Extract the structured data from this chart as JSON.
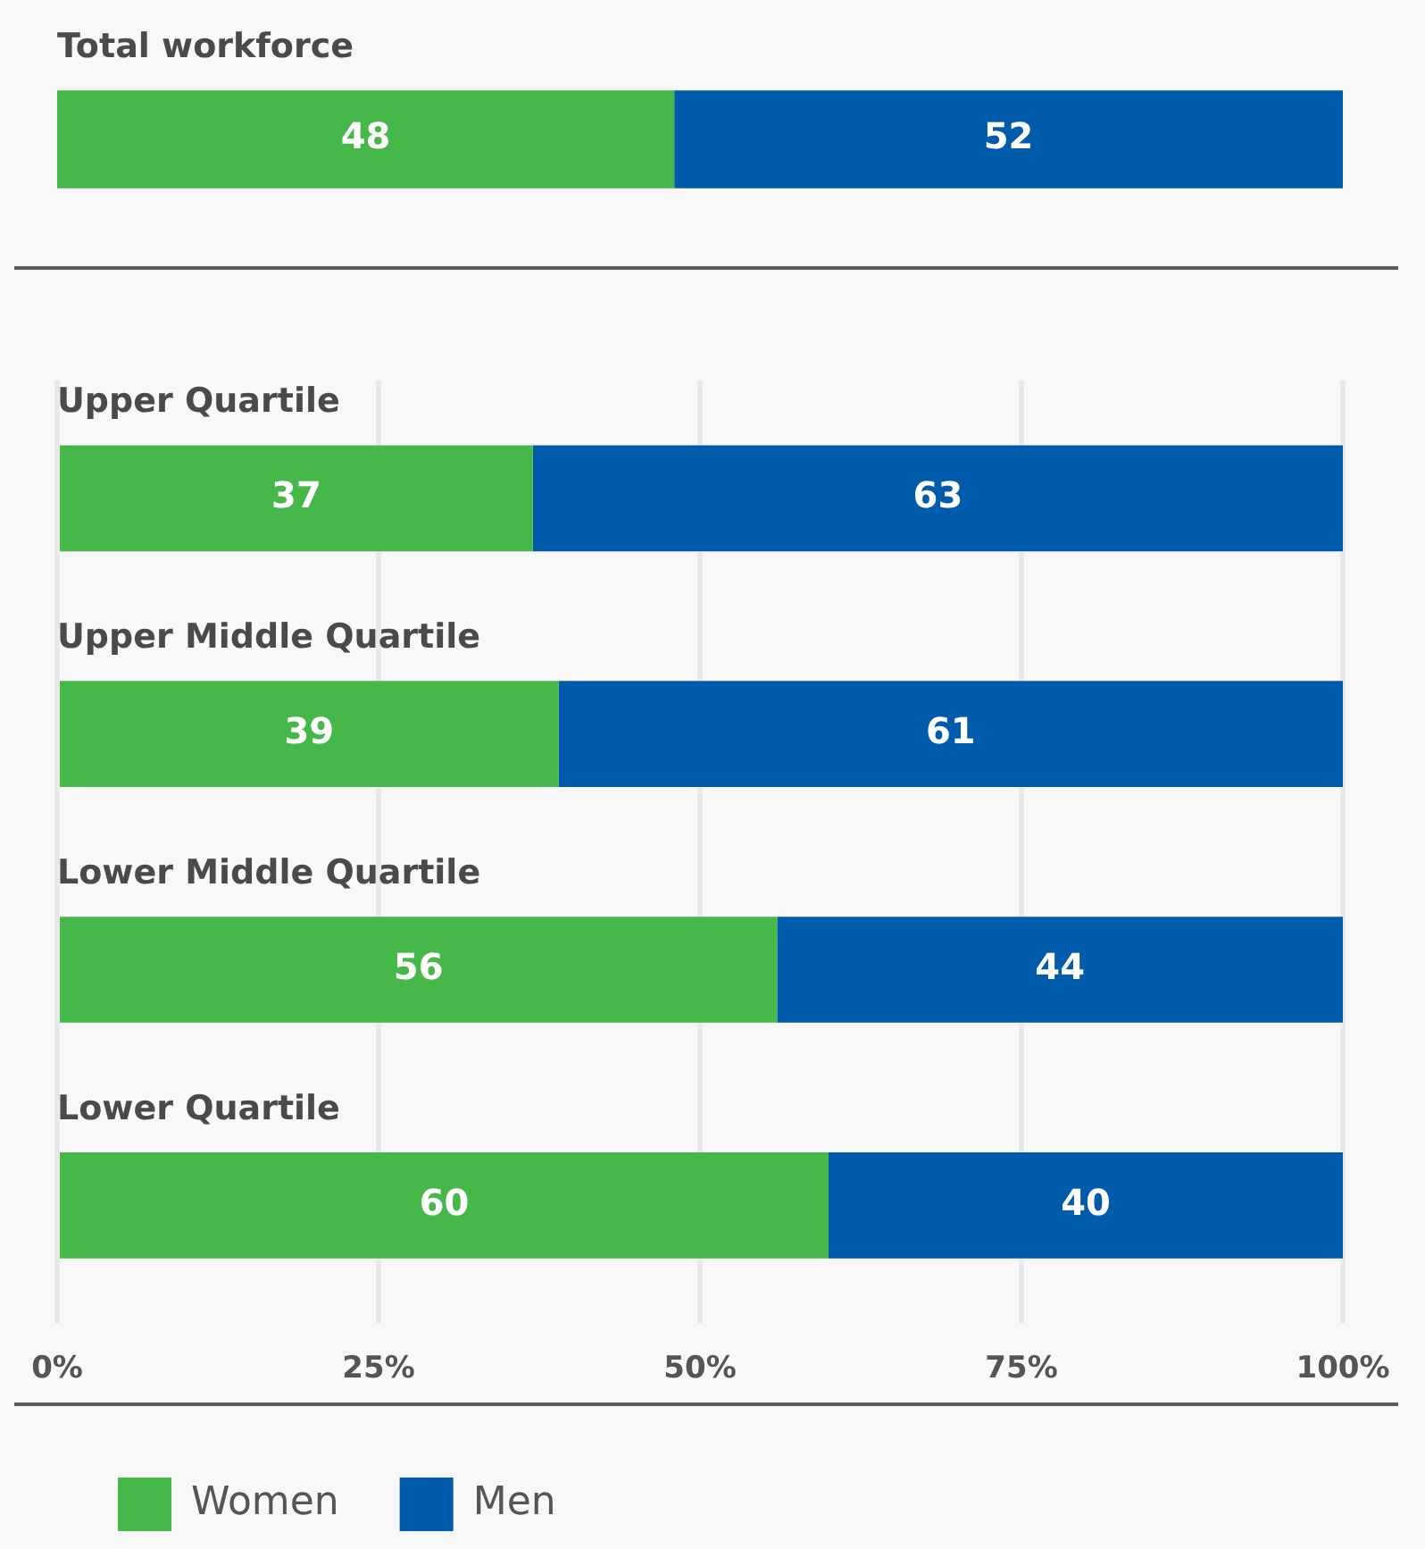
{
  "chart_data": [
    {
      "type": "bar",
      "orientation": "horizontal",
      "stacked": true,
      "categories": [
        "Total workforce"
      ],
      "series": [
        {
          "color": "#46b749",
          "values": [
            48
          ]
        },
        {
          "color": "#005baa",
          "values": [
            52
          ]
        }
      ],
      "xlim": [
        0,
        100
      ],
      "data_labels": true
    },
    {
      "type": "bar",
      "orientation": "horizontal",
      "stacked": true,
      "categories": [
        "Upper Quartile",
        "Upper Middle Quartile",
        "Lower Middle Quartile",
        "Lower Quartile"
      ],
      "series": [
        {
          "name": "Women",
          "color": "#46b749",
          "values": [
            37,
            39,
            56,
            60
          ]
        },
        {
          "name": "Men",
          "color": "#005baa",
          "values": [
            63,
            61,
            44,
            40
          ]
        }
      ],
      "xlim": [
        0,
        100
      ],
      "xticks": [
        {
          "value": 0,
          "label": "0%"
        },
        {
          "value": 25,
          "label": "25%"
        },
        {
          "value": 50,
          "label": "50%"
        },
        {
          "value": 75,
          "label": "75%"
        },
        {
          "value": 100,
          "label": "100%"
        }
      ],
      "grid": "x",
      "legend": "bottom",
      "data_labels": true
    }
  ]
}
